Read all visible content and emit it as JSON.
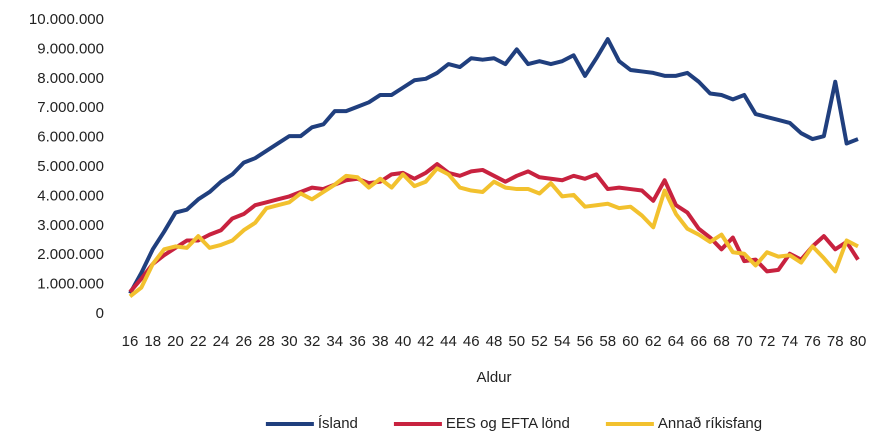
{
  "chart_data": {
    "type": "line",
    "x_label": "Aldur",
    "categories": [
      16,
      null,
      18,
      null,
      20,
      null,
      22,
      null,
      24,
      null,
      26,
      null,
      28,
      null,
      30,
      null,
      32,
      null,
      34,
      null,
      36,
      null,
      38,
      null,
      40,
      null,
      42,
      null,
      44,
      null,
      46,
      null,
      48,
      null,
      50,
      null,
      52,
      null,
      54,
      null,
      56,
      null,
      58,
      null,
      60,
      null,
      62,
      null,
      64,
      null,
      66,
      null,
      68,
      null,
      70,
      null,
      72,
      null,
      74,
      null,
      76,
      null,
      78,
      null,
      80
    ],
    "ylim": [
      0,
      10000000
    ],
    "yticks": [
      0,
      {
        "value": 1000000,
        "label": "1.000.000"
      },
      {
        "value": 2000000,
        "label": "2.000.000"
      },
      {
        "value": 3000000,
        "label": "3.000.000"
      },
      {
        "value": 4000000,
        "label": "4.000.000"
      },
      {
        "value": 5000000,
        "label": "5.000.000"
      },
      {
        "value": 6000000,
        "label": "6.000.000"
      },
      {
        "value": 7000000,
        "label": "7.000.000"
      },
      {
        "value": 8000000,
        "label": "8.000.000"
      },
      {
        "value": 9000000,
        "label": "9.000.000"
      },
      {
        "value": 10000000,
        "label": "10.000.000"
      }
    ],
    "grid": false,
    "legend": "bottom",
    "series": [
      {
        "name": "Ísland",
        "color": "#203f7e",
        "values": [
          700000,
          1400000,
          2200000,
          2800000,
          3450000,
          3550000,
          3900000,
          4150000,
          4500000,
          4750000,
          5150000,
          5300000,
          5550000,
          5800000,
          6050000,
          6050000,
          6350000,
          6450000,
          6900000,
          6900000,
          7050000,
          7200000,
          7450000,
          7450000,
          7700000,
          7950000,
          8000000,
          8200000,
          8500000,
          8400000,
          8700000,
          8650000,
          8700000,
          8500000,
          9000000,
          8500000,
          8600000,
          8500000,
          8600000,
          8800000,
          8100000,
          8700000,
          9350000,
          8600000,
          8300000,
          8250000,
          8200000,
          8100000,
          8100000,
          8200000,
          7900000,
          7500000,
          7450000,
          7300000,
          7450000,
          6800000,
          6700000,
          6600000,
          6500000,
          6150000,
          5950000,
          6050000,
          7900000,
          5800000,
          5950000
        ]
      },
      {
        "name": "EES og EFTA lönd",
        "color": "#c8223f",
        "values": [
          750000,
          1200000,
          1700000,
          2000000,
          2250000,
          2500000,
          2500000,
          2700000,
          2850000,
          3250000,
          3400000,
          3700000,
          3800000,
          3900000,
          4000000,
          4150000,
          4300000,
          4250000,
          4400000,
          4550000,
          4600000,
          4450000,
          4500000,
          4750000,
          4800000,
          4600000,
          4800000,
          5100000,
          4800000,
          4700000,
          4850000,
          4900000,
          4700000,
          4500000,
          4700000,
          4850000,
          4650000,
          4600000,
          4550000,
          4700000,
          4600000,
          4750000,
          4250000,
          4300000,
          4250000,
          4200000,
          3850000,
          4550000,
          3700000,
          3450000,
          2900000,
          2600000,
          2200000,
          2600000,
          1800000,
          1850000,
          1450000,
          1500000,
          2050000,
          1850000,
          2300000,
          2650000,
          2200000,
          2450000,
          1850000
        ]
      },
      {
        "name": "Annað ríkisfang",
        "color": "#f2c12e",
        "values": [
          600000,
          900000,
          1700000,
          2200000,
          2300000,
          2250000,
          2650000,
          2250000,
          2350000,
          2500000,
          2850000,
          3100000,
          3600000,
          3700000,
          3800000,
          4100000,
          3900000,
          4150000,
          4400000,
          4700000,
          4650000,
          4300000,
          4600000,
          4300000,
          4750000,
          4350000,
          4500000,
          4950000,
          4750000,
          4300000,
          4200000,
          4150000,
          4500000,
          4300000,
          4250000,
          4250000,
          4100000,
          4450000,
          4000000,
          4050000,
          3650000,
          3700000,
          3750000,
          3600000,
          3650000,
          3350000,
          2950000,
          4200000,
          3400000,
          2900000,
          2700000,
          2450000,
          2700000,
          2100000,
          2050000,
          1650000,
          2100000,
          1950000,
          2000000,
          1750000,
          2300000,
          1900000,
          1450000,
          2500000,
          2300000
        ]
      }
    ]
  }
}
